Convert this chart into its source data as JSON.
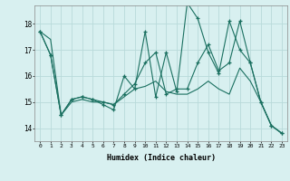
{
  "xlabel": "Humidex (Indice chaleur)",
  "background_color": "#d8f0f0",
  "line_color": "#1a7060",
  "grid_color": "#b8dada",
  "xlim": [
    -0.5,
    23.5
  ],
  "ylim": [
    13.5,
    18.7
  ],
  "yticks": [
    14,
    15,
    16,
    17,
    18
  ],
  "xticks": [
    0,
    1,
    2,
    3,
    4,
    5,
    6,
    7,
    8,
    9,
    10,
    11,
    12,
    13,
    14,
    15,
    16,
    17,
    18,
    19,
    20,
    21,
    22,
    23
  ],
  "series": [
    {
      "x": [
        0,
        1,
        2,
        3,
        4,
        5,
        6,
        7,
        8,
        9,
        10,
        11,
        12,
        13,
        14,
        15,
        16,
        17,
        18,
        19,
        20,
        21,
        22,
        23
      ],
      "y": [
        17.7,
        16.8,
        14.5,
        15.1,
        15.2,
        15.1,
        14.9,
        14.7,
        16.0,
        15.5,
        17.7,
        15.2,
        16.9,
        15.4,
        18.8,
        18.2,
        16.9,
        16.1,
        18.1,
        17.0,
        16.5,
        15.0,
        14.1,
        13.8
      ],
      "markers": true
    },
    {
      "x": [
        0,
        1,
        2,
        3,
        4,
        5,
        6,
        7,
        8,
        9,
        10,
        11,
        12,
        13,
        14,
        15,
        16,
        17,
        18,
        19,
        20,
        21,
        22,
        23
      ],
      "y": [
        17.7,
        16.8,
        14.5,
        15.1,
        15.2,
        15.1,
        15.0,
        14.9,
        15.3,
        15.7,
        16.5,
        16.9,
        15.3,
        15.5,
        15.5,
        16.5,
        17.2,
        16.2,
        16.5,
        18.1,
        16.5,
        15.0,
        14.1,
        13.8
      ],
      "markers": true
    },
    {
      "x": [
        0,
        1,
        2,
        3,
        4,
        5,
        6,
        7,
        8,
        9,
        10,
        11,
        12,
        13,
        14,
        15,
        16,
        17,
        18,
        19,
        20,
        21,
        22,
        23
      ],
      "y": [
        17.7,
        17.4,
        14.5,
        15.0,
        15.1,
        15.0,
        15.0,
        14.9,
        15.2,
        15.5,
        15.6,
        15.8,
        15.4,
        15.3,
        15.3,
        15.5,
        15.8,
        15.5,
        15.3,
        16.3,
        15.8,
        15.0,
        14.1,
        13.8
      ],
      "markers": false
    }
  ],
  "figsize": [
    3.2,
    2.0
  ],
  "dpi": 100
}
